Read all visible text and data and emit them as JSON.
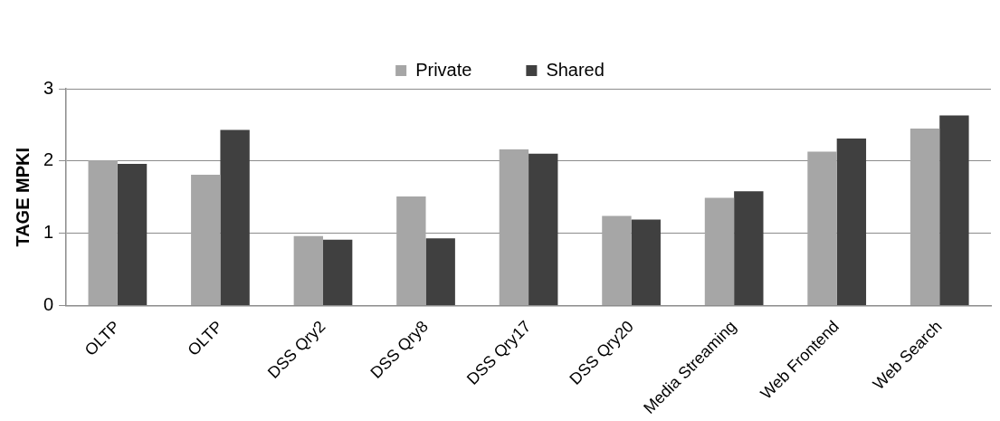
{
  "chart_data": {
    "type": "bar",
    "ylabel": "TAGE MPKI",
    "categories": [
      "OLTP",
      "OLTP",
      "DSS Qry2",
      "DSS Qry8",
      "DSS Qry17",
      "DSS Qry20",
      "Media Streaming",
      "Web Frontend",
      "Web Search"
    ],
    "series": [
      {
        "name": "Private",
        "color": "#a6a6a6",
        "values": [
          2.01,
          1.81,
          0.96,
          1.51,
          2.16,
          1.24,
          1.49,
          2.13,
          2.45
        ]
      },
      {
        "name": "Shared",
        "color": "#404040",
        "values": [
          1.96,
          2.43,
          0.91,
          0.93,
          2.1,
          1.19,
          1.58,
          2.31,
          2.63
        ]
      }
    ],
    "ylim": [
      0,
      3
    ],
    "yticks": [
      0,
      1,
      2,
      3
    ],
    "grid": "y",
    "legend": "top"
  }
}
